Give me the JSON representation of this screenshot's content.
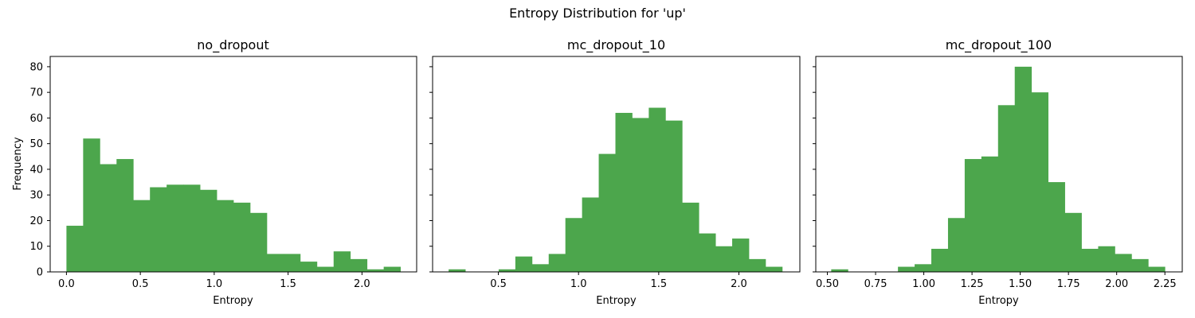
{
  "figure": {
    "suptitle": "Entropy Distribution for 'up'",
    "bar_color": "#4ca64c"
  },
  "chart_data": [
    {
      "type": "bar",
      "title": "no_dropout",
      "xlabel": "Entropy",
      "ylabel": "Frequency",
      "xlim": [
        -0.11,
        2.37
      ],
      "ylim": [
        0,
        84
      ],
      "xticks": [
        0.0,
        0.5,
        1.0,
        1.5,
        2.0
      ],
      "xtick_labels": [
        "0.0",
        "0.5",
        "1.0",
        "1.5",
        "2.0"
      ],
      "yticks": [
        0,
        10,
        20,
        30,
        40,
        50,
        60,
        70,
        80
      ],
      "ytick_labels": [
        "0",
        "10",
        "20",
        "30",
        "40",
        "50",
        "60",
        "70",
        "80"
      ],
      "bin_start": 0.0,
      "bin_width": 0.113,
      "values": [
        18,
        52,
        42,
        44,
        28,
        33,
        34,
        34,
        32,
        28,
        27,
        23,
        7,
        7,
        4,
        2,
        8,
        5,
        1,
        2
      ]
    },
    {
      "type": "bar",
      "title": "mc_dropout_10",
      "xlabel": "Entropy",
      "ylabel": "",
      "xlim": [
        0.09,
        2.38
      ],
      "ylim": [
        0,
        84
      ],
      "xticks": [
        0.5,
        1.0,
        1.5,
        2.0
      ],
      "xtick_labels": [
        "0.5",
        "1.0",
        "1.5",
        "2.0"
      ],
      "yticks": [
        0,
        10,
        20,
        30,
        40,
        50,
        60,
        70,
        80
      ],
      "ytick_labels": [
        "",
        "",
        "",
        "",
        "",
        "",
        "",
        "",
        ""
      ],
      "bin_start": 0.19,
      "bin_width": 0.104,
      "values": [
        1,
        0,
        0,
        1,
        6,
        3,
        7,
        21,
        29,
        46,
        62,
        60,
        64,
        59,
        27,
        15,
        10,
        13,
        5,
        2
      ]
    },
    {
      "type": "bar",
      "title": "mc_dropout_100",
      "xlabel": "Entropy",
      "ylabel": "",
      "xlim": [
        0.44,
        2.34
      ],
      "ylim": [
        0,
        84
      ],
      "xticks": [
        0.5,
        0.75,
        1.0,
        1.25,
        1.5,
        1.75,
        2.0,
        2.25
      ],
      "xtick_labels": [
        "0.50",
        "0.75",
        "1.00",
        "1.25",
        "1.50",
        "1.75",
        "2.00",
        "2.25"
      ],
      "yticks": [
        0,
        10,
        20,
        30,
        40,
        50,
        60,
        70,
        80
      ],
      "ytick_labels": [
        "",
        "",
        "",
        "",
        "",
        "",
        "",
        "",
        ""
      ],
      "bin_start": 0.52,
      "bin_width": 0.0865,
      "values": [
        1,
        0,
        0,
        0,
        2,
        3,
        9,
        21,
        44,
        45,
        65,
        80,
        70,
        35,
        23,
        9,
        10,
        7,
        5,
        2
      ]
    }
  ]
}
